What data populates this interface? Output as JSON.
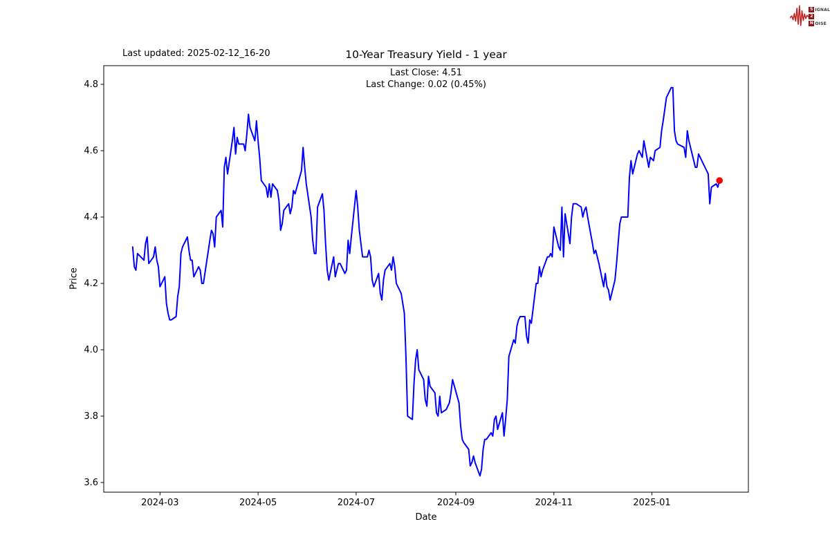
{
  "header": {
    "last_updated": "Last updated: 2025-02-12_16-20",
    "title": "10-Year Treasury Yield - 1 year",
    "subtitle_close": "Last Close: 4.51",
    "subtitle_change": "Last Change: 0.02 (0.45%)"
  },
  "logo": {
    "rows": [
      {
        "box": "S",
        "rest": "IGNAL"
      },
      {
        "box": "2",
        "rest": ""
      },
      {
        "box": "N",
        "rest": "OISE"
      }
    ],
    "waveform_color": "#c41f1f",
    "box_color": "#8b1717"
  },
  "chart_data": {
    "type": "line",
    "title": "10-Year Treasury Yield - 1 year",
    "xlabel": "Date",
    "ylabel": "Price",
    "ylim": [
      3.56,
      4.86
    ],
    "grid": false,
    "legend": "none",
    "line_color": "#0000ff",
    "last_point_color": "#ff0000",
    "last_close": 4.51,
    "last_change": 0.02,
    "last_change_pct": "0.45%",
    "y_ticks": [
      {
        "label": "4.8",
        "value": 4.8
      },
      {
        "label": "4.6",
        "value": 4.6
      },
      {
        "label": "4.4",
        "value": 4.4
      },
      {
        "label": "4.2",
        "value": 4.2
      },
      {
        "label": "4.0",
        "value": 4.0
      },
      {
        "label": "3.8",
        "value": 3.8
      },
      {
        "label": "3.6",
        "value": 3.6
      }
    ],
    "x_ticks": [
      {
        "label": "2024-03",
        "date": "2024-03-01"
      },
      {
        "label": "2024-05",
        "date": "2024-05-01"
      },
      {
        "label": "2024-07",
        "date": "2024-07-01"
      },
      {
        "label": "2024-09",
        "date": "2024-09-01"
      },
      {
        "label": "2024-11",
        "date": "2024-11-01"
      },
      {
        "label": "2025-01",
        "date": "2025-01-01"
      }
    ],
    "series": [
      {
        "name": "10-Year Treasury Yield",
        "points": [
          [
            "2024-02-13",
            4.31
          ],
          [
            "2024-02-14",
            4.25
          ],
          [
            "2024-02-15",
            4.24
          ],
          [
            "2024-02-16",
            4.29
          ],
          [
            "2024-02-20",
            4.27
          ],
          [
            "2024-02-21",
            4.32
          ],
          [
            "2024-02-22",
            4.34
          ],
          [
            "2024-02-23",
            4.26
          ],
          [
            "2024-02-26",
            4.28
          ],
          [
            "2024-02-27",
            4.31
          ],
          [
            "2024-02-28",
            4.27
          ],
          [
            "2024-02-29",
            4.25
          ],
          [
            "2024-03-01",
            4.19
          ],
          [
            "2024-03-04",
            4.22
          ],
          [
            "2024-03-05",
            4.14
          ],
          [
            "2024-03-06",
            4.11
          ],
          [
            "2024-03-07",
            4.09
          ],
          [
            "2024-03-08",
            4.09
          ],
          [
            "2024-03-11",
            4.1
          ],
          [
            "2024-03-12",
            4.16
          ],
          [
            "2024-03-13",
            4.19
          ],
          [
            "2024-03-14",
            4.29
          ],
          [
            "2024-03-15",
            4.31
          ],
          [
            "2024-03-18",
            4.34
          ],
          [
            "2024-03-19",
            4.3
          ],
          [
            "2024-03-20",
            4.27
          ],
          [
            "2024-03-21",
            4.27
          ],
          [
            "2024-03-22",
            4.22
          ],
          [
            "2024-03-25",
            4.25
          ],
          [
            "2024-03-26",
            4.24
          ],
          [
            "2024-03-27",
            4.2
          ],
          [
            "2024-03-28",
            4.2
          ],
          [
            "2024-04-01",
            4.33
          ],
          [
            "2024-04-02",
            4.36
          ],
          [
            "2024-04-03",
            4.35
          ],
          [
            "2024-04-04",
            4.31
          ],
          [
            "2024-04-05",
            4.4
          ],
          [
            "2024-04-08",
            4.42
          ],
          [
            "2024-04-09",
            4.37
          ],
          [
            "2024-04-10",
            4.55
          ],
          [
            "2024-04-11",
            4.58
          ],
          [
            "2024-04-12",
            4.53
          ],
          [
            "2024-04-15",
            4.63
          ],
          [
            "2024-04-16",
            4.67
          ],
          [
            "2024-04-17",
            4.59
          ],
          [
            "2024-04-18",
            4.64
          ],
          [
            "2024-04-19",
            4.62
          ],
          [
            "2024-04-22",
            4.62
          ],
          [
            "2024-04-23",
            4.6
          ],
          [
            "2024-04-24",
            4.65
          ],
          [
            "2024-04-25",
            4.71
          ],
          [
            "2024-04-26",
            4.67
          ],
          [
            "2024-04-29",
            4.63
          ],
          [
            "2024-04-30",
            4.69
          ],
          [
            "2024-05-01",
            4.63
          ],
          [
            "2024-05-02",
            4.58
          ],
          [
            "2024-05-03",
            4.51
          ],
          [
            "2024-05-06",
            4.49
          ],
          [
            "2024-05-07",
            4.46
          ],
          [
            "2024-05-08",
            4.5
          ],
          [
            "2024-05-09",
            4.46
          ],
          [
            "2024-05-10",
            4.5
          ],
          [
            "2024-05-13",
            4.48
          ],
          [
            "2024-05-14",
            4.45
          ],
          [
            "2024-05-15",
            4.36
          ],
          [
            "2024-05-16",
            4.38
          ],
          [
            "2024-05-17",
            4.42
          ],
          [
            "2024-05-20",
            4.44
          ],
          [
            "2024-05-21",
            4.41
          ],
          [
            "2024-05-22",
            4.43
          ],
          [
            "2024-05-23",
            4.48
          ],
          [
            "2024-05-24",
            4.47
          ],
          [
            "2024-05-28",
            4.54
          ],
          [
            "2024-05-29",
            4.61
          ],
          [
            "2024-05-30",
            4.55
          ],
          [
            "2024-05-31",
            4.5
          ],
          [
            "2024-06-03",
            4.4
          ],
          [
            "2024-06-04",
            4.33
          ],
          [
            "2024-06-05",
            4.29
          ],
          [
            "2024-06-06",
            4.29
          ],
          [
            "2024-06-07",
            4.43
          ],
          [
            "2024-06-10",
            4.47
          ],
          [
            "2024-06-11",
            4.42
          ],
          [
            "2024-06-12",
            4.32
          ],
          [
            "2024-06-13",
            4.24
          ],
          [
            "2024-06-14",
            4.21
          ],
          [
            "2024-06-17",
            4.28
          ],
          [
            "2024-06-18",
            4.22
          ],
          [
            "2024-06-20",
            4.26
          ],
          [
            "2024-06-21",
            4.26
          ],
          [
            "2024-06-24",
            4.23
          ],
          [
            "2024-06-25",
            4.24
          ],
          [
            "2024-06-26",
            4.33
          ],
          [
            "2024-06-27",
            4.29
          ],
          [
            "2024-06-28",
            4.34
          ],
          [
            "2024-07-01",
            4.48
          ],
          [
            "2024-07-02",
            4.43
          ],
          [
            "2024-07-03",
            4.36
          ],
          [
            "2024-07-05",
            4.28
          ],
          [
            "2024-07-08",
            4.28
          ],
          [
            "2024-07-09",
            4.3
          ],
          [
            "2024-07-10",
            4.28
          ],
          [
            "2024-07-11",
            4.21
          ],
          [
            "2024-07-12",
            4.19
          ],
          [
            "2024-07-15",
            4.23
          ],
          [
            "2024-07-16",
            4.17
          ],
          [
            "2024-07-17",
            4.15
          ],
          [
            "2024-07-18",
            4.21
          ],
          [
            "2024-07-19",
            4.24
          ],
          [
            "2024-07-22",
            4.26
          ],
          [
            "2024-07-23",
            4.24
          ],
          [
            "2024-07-24",
            4.28
          ],
          [
            "2024-07-25",
            4.25
          ],
          [
            "2024-07-26",
            4.2
          ],
          [
            "2024-07-29",
            4.17
          ],
          [
            "2024-07-30",
            4.14
          ],
          [
            "2024-07-31",
            4.11
          ],
          [
            "2024-08-01",
            3.98
          ],
          [
            "2024-08-02",
            3.8
          ],
          [
            "2024-08-05",
            3.79
          ],
          [
            "2024-08-06",
            3.9
          ],
          [
            "2024-08-07",
            3.97
          ],
          [
            "2024-08-08",
            4.0
          ],
          [
            "2024-08-09",
            3.94
          ],
          [
            "2024-08-12",
            3.91
          ],
          [
            "2024-08-13",
            3.85
          ],
          [
            "2024-08-14",
            3.83
          ],
          [
            "2024-08-15",
            3.92
          ],
          [
            "2024-08-16",
            3.89
          ],
          [
            "2024-08-19",
            3.87
          ],
          [
            "2024-08-20",
            3.81
          ],
          [
            "2024-08-21",
            3.8
          ],
          [
            "2024-08-22",
            3.86
          ],
          [
            "2024-08-23",
            3.81
          ],
          [
            "2024-08-26",
            3.82
          ],
          [
            "2024-08-27",
            3.83
          ],
          [
            "2024-08-28",
            3.84
          ],
          [
            "2024-08-29",
            3.87
          ],
          [
            "2024-08-30",
            3.91
          ],
          [
            "2024-09-03",
            3.84
          ],
          [
            "2024-09-04",
            3.77
          ],
          [
            "2024-09-05",
            3.73
          ],
          [
            "2024-09-06",
            3.72
          ],
          [
            "2024-09-09",
            3.7
          ],
          [
            "2024-09-10",
            3.65
          ],
          [
            "2024-09-11",
            3.66
          ],
          [
            "2024-09-12",
            3.68
          ],
          [
            "2024-09-13",
            3.66
          ],
          [
            "2024-09-16",
            3.62
          ],
          [
            "2024-09-17",
            3.64
          ],
          [
            "2024-09-18",
            3.7
          ],
          [
            "2024-09-19",
            3.73
          ],
          [
            "2024-09-20",
            3.73
          ],
          [
            "2024-09-23",
            3.75
          ],
          [
            "2024-09-24",
            3.74
          ],
          [
            "2024-09-25",
            3.79
          ],
          [
            "2024-09-26",
            3.8
          ],
          [
            "2024-09-27",
            3.76
          ],
          [
            "2024-09-30",
            3.81
          ],
          [
            "2024-10-01",
            3.74
          ],
          [
            "2024-10-02",
            3.79
          ],
          [
            "2024-10-03",
            3.85
          ],
          [
            "2024-10-04",
            3.98
          ],
          [
            "2024-10-07",
            4.03
          ],
          [
            "2024-10-08",
            4.02
          ],
          [
            "2024-10-09",
            4.07
          ],
          [
            "2024-10-10",
            4.09
          ],
          [
            "2024-10-11",
            4.1
          ],
          [
            "2024-10-14",
            4.1
          ],
          [
            "2024-10-15",
            4.04
          ],
          [
            "2024-10-16",
            4.02
          ],
          [
            "2024-10-17",
            4.09
          ],
          [
            "2024-10-18",
            4.08
          ],
          [
            "2024-10-21",
            4.2
          ],
          [
            "2024-10-22",
            4.2
          ],
          [
            "2024-10-23",
            4.25
          ],
          [
            "2024-10-24",
            4.22
          ],
          [
            "2024-10-25",
            4.24
          ],
          [
            "2024-10-28",
            4.28
          ],
          [
            "2024-10-29",
            4.28
          ],
          [
            "2024-10-30",
            4.29
          ],
          [
            "2024-10-31",
            4.28
          ],
          [
            "2024-11-01",
            4.37
          ],
          [
            "2024-11-04",
            4.31
          ],
          [
            "2024-11-05",
            4.3
          ],
          [
            "2024-11-06",
            4.43
          ],
          [
            "2024-11-07",
            4.28
          ],
          [
            "2024-11-08",
            4.41
          ],
          [
            "2024-11-11",
            4.32
          ],
          [
            "2024-11-12",
            4.4
          ],
          [
            "2024-11-13",
            4.44
          ],
          [
            "2024-11-14",
            4.44
          ],
          [
            "2024-11-15",
            4.44
          ],
          [
            "2024-11-18",
            4.43
          ],
          [
            "2024-11-19",
            4.4
          ],
          [
            "2024-11-20",
            4.42
          ],
          [
            "2024-11-21",
            4.43
          ],
          [
            "2024-11-22",
            4.4
          ],
          [
            "2024-11-25",
            4.32
          ],
          [
            "2024-11-26",
            4.29
          ],
          [
            "2024-11-27",
            4.3
          ],
          [
            "2024-11-29",
            4.26
          ],
          [
            "2024-12-02",
            4.19
          ],
          [
            "2024-12-03",
            4.23
          ],
          [
            "2024-12-04",
            4.19
          ],
          [
            "2024-12-05",
            4.18
          ],
          [
            "2024-12-06",
            4.15
          ],
          [
            "2024-12-09",
            4.21
          ],
          [
            "2024-12-10",
            4.26
          ],
          [
            "2024-12-11",
            4.32
          ],
          [
            "2024-12-12",
            4.38
          ],
          [
            "2024-12-13",
            4.4
          ],
          [
            "2024-12-16",
            4.4
          ],
          [
            "2024-12-17",
            4.4
          ],
          [
            "2024-12-18",
            4.52
          ],
          [
            "2024-12-19",
            4.57
          ],
          [
            "2024-12-20",
            4.53
          ],
          [
            "2024-12-23",
            4.59
          ],
          [
            "2024-12-24",
            4.6
          ],
          [
            "2024-12-26",
            4.58
          ],
          [
            "2024-12-27",
            4.63
          ],
          [
            "2024-12-30",
            4.55
          ],
          [
            "2024-12-31",
            4.58
          ],
          [
            "2025-01-02",
            4.57
          ],
          [
            "2025-01-03",
            4.6
          ],
          [
            "2025-01-06",
            4.61
          ],
          [
            "2025-01-07",
            4.66
          ],
          [
            "2025-01-08",
            4.69
          ],
          [
            "2025-01-10",
            4.76
          ],
          [
            "2025-01-13",
            4.79
          ],
          [
            "2025-01-14",
            4.79
          ],
          [
            "2025-01-15",
            4.66
          ],
          [
            "2025-01-16",
            4.63
          ],
          [
            "2025-01-17",
            4.62
          ],
          [
            "2025-01-21",
            4.61
          ],
          [
            "2025-01-22",
            4.58
          ],
          [
            "2025-01-23",
            4.66
          ],
          [
            "2025-01-24",
            4.63
          ],
          [
            "2025-01-27",
            4.57
          ],
          [
            "2025-01-28",
            4.55
          ],
          [
            "2025-01-29",
            4.55
          ],
          [
            "2025-01-30",
            4.59
          ],
          [
            "2025-01-31",
            4.58
          ],
          [
            "2025-02-03",
            4.55
          ],
          [
            "2025-02-04",
            4.54
          ],
          [
            "2025-02-05",
            4.53
          ],
          [
            "2025-02-06",
            4.44
          ],
          [
            "2025-02-07",
            4.49
          ],
          [
            "2025-02-10",
            4.5
          ],
          [
            "2025-02-11",
            4.49
          ],
          [
            "2025-02-12",
            4.51
          ]
        ]
      }
    ],
    "last_point": {
      "date": "2025-02-12",
      "value": 4.51
    }
  }
}
